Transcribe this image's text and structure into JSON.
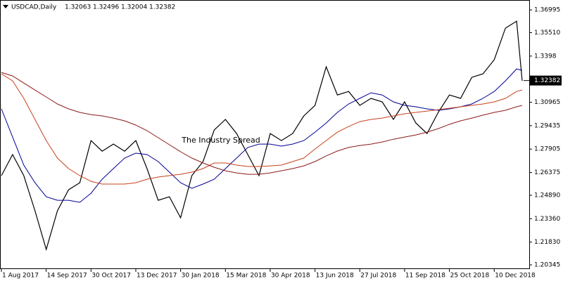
{
  "chart_data": {
    "type": "line",
    "title": "USDCAD,Daily",
    "quote": [
      1.32063,
      1.32496,
      1.32004,
      1.32382
    ],
    "annotation": "The Industry Spread",
    "last_price": 1.32382,
    "grid": false,
    "x": [
      0,
      8,
      16,
      24,
      32,
      40,
      48,
      56,
      64,
      72,
      80,
      88,
      96,
      104,
      112,
      120,
      128,
      136,
      144,
      152,
      160,
      168,
      176,
      184,
      192,
      200,
      208,
      216,
      224,
      232,
      240,
      248,
      256,
      264,
      272,
      280,
      288,
      296,
      304,
      312,
      320,
      328,
      336,
      344,
      352,
      360,
      368,
      372
    ],
    "xlim": [
      0,
      376
    ],
    "xticks": [
      {
        "value": 0,
        "label": "1 Aug 2017"
      },
      {
        "value": 32,
        "label": "14 Sep 2017"
      },
      {
        "value": 64,
        "label": "30 Oct 2017"
      },
      {
        "value": 96,
        "label": "13 Dec 2017"
      },
      {
        "value": 128,
        "label": "30 Jan 2018"
      },
      {
        "value": 160,
        "label": "15 Mar 2018"
      },
      {
        "value": 192,
        "label": "30 Apr 2018"
      },
      {
        "value": 224,
        "label": "13 Jun 2018"
      },
      {
        "value": 256,
        "label": "27 Jul 2018"
      },
      {
        "value": 288,
        "label": "11 Sep 2018"
      },
      {
        "value": 320,
        "label": "25 Oct 2018"
      },
      {
        "value": 352,
        "label": "10 Dec 2018"
      }
    ],
    "ylim": [
      1.2007,
      1.3755
    ],
    "yticks": [
      1.36995,
      {
        "value": 1.3551,
        "label": "1.35510"
      },
      1.3398,
      1.30965,
      1.29435,
      1.27905,
      1.26375,
      {
        "value": 1.2489,
        "label": "1.24890"
      },
      {
        "value": 1.2336,
        "label": "1.23360"
      },
      {
        "value": 1.2183,
        "label": "1.21830"
      },
      1.20345
    ],
    "series": [
      {
        "color": "#000000",
        "values": [
          1.2617,
          1.2755,
          1.2617,
          1.2388,
          1.2135,
          1.2388,
          1.2525,
          1.2571,
          1.2846,
          1.2777,
          1.2823,
          1.2777,
          1.2846,
          1.2663,
          1.2456,
          1.2479,
          1.2342,
          1.2617,
          1.2709,
          1.2915,
          1.2984,
          1.2892,
          1.2755,
          1.2617,
          1.2892,
          1.2846,
          1.2892,
          1.3007,
          1.3076,
          1.3328,
          1.3144,
          1.3167,
          1.3076,
          1.3122,
          1.3099,
          1.2984,
          1.3099,
          1.2961,
          1.2892,
          1.303,
          1.3144,
          1.3122,
          1.3259,
          1.3282,
          1.3374,
          1.358,
          1.3626,
          1.3236
        ]
      },
      {
        "color": "#000090",
        "values": [
          1.3053,
          1.2869,
          1.2686,
          1.2571,
          1.2479,
          1.2456,
          1.2456,
          1.2443,
          1.2502,
          1.2594,
          1.2663,
          1.2732,
          1.2764,
          1.2755,
          1.2709,
          1.264,
          1.2571,
          1.2534,
          1.2562,
          1.2594,
          1.2663,
          1.2732,
          1.2801,
          1.2823,
          1.2823,
          1.281,
          1.2823,
          1.2846,
          1.2901,
          1.2961,
          1.303,
          1.3085,
          1.3122,
          1.3158,
          1.3144,
          1.3099,
          1.3076,
          1.3067,
          1.3053,
          1.3044,
          1.3053,
          1.3067,
          1.3085,
          1.3122,
          1.3167,
          1.3236,
          1.3314,
          1.3305
        ]
      },
      {
        "color": "#c8401c",
        "values": [
          1.3282,
          1.3236,
          1.3122,
          1.2984,
          1.2846,
          1.2732,
          1.2663,
          1.2617,
          1.258,
          1.2562,
          1.2562,
          1.2562,
          1.2571,
          1.2594,
          1.2608,
          1.2617,
          1.2626,
          1.264,
          1.2663,
          1.27,
          1.27,
          1.2686,
          1.2677,
          1.2677,
          1.2681,
          1.2686,
          1.2709,
          1.2732,
          1.2791,
          1.2846,
          1.2901,
          1.2938,
          1.297,
          1.2984,
          1.2993,
          1.3007,
          1.3021,
          1.303,
          1.3039,
          1.3048,
          1.3057,
          1.3067,
          1.3076,
          1.3085,
          1.3099,
          1.3122,
          1.3167,
          1.3177
        ]
      },
      {
        "color": "#8b1a1a",
        "values": [
          1.3291,
          1.3268,
          1.3222,
          1.3176,
          1.3131,
          1.3085,
          1.3053,
          1.303,
          1.3016,
          1.3007,
          1.2993,
          1.2975,
          1.2947,
          1.2911,
          1.2865,
          1.2819,
          1.2773,
          1.2732,
          1.27,
          1.2672,
          1.2649,
          1.2635,
          1.2626,
          1.2626,
          1.2635,
          1.2649,
          1.2663,
          1.2681,
          1.2709,
          1.2746,
          1.2778,
          1.2801,
          1.2814,
          1.2823,
          1.2837,
          1.2855,
          1.2869,
          1.2883,
          1.2901,
          1.2924,
          1.2952,
          1.2975,
          1.2993,
          1.3012,
          1.303,
          1.3044,
          1.3067,
          1.3076
        ]
      }
    ]
  }
}
